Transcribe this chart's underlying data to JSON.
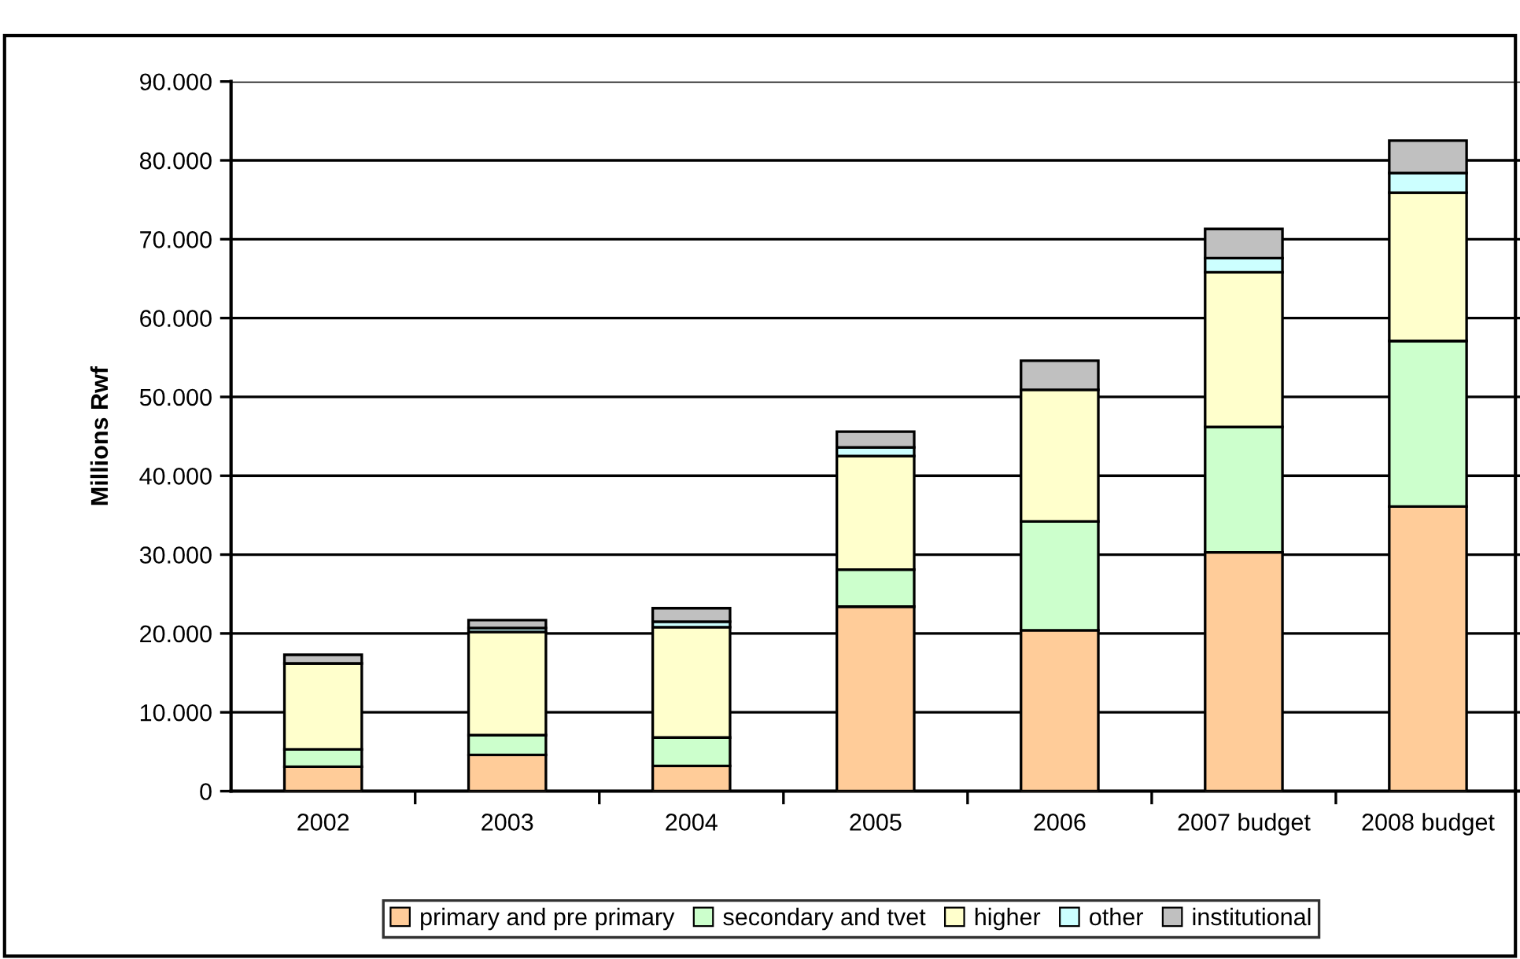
{
  "chart_data": {
    "type": "bar",
    "stacked": true,
    "ylabel": "Millions Rwf",
    "categories": [
      "2002",
      "2003",
      "2004",
      "2005",
      "2006",
      "2007 budget",
      "2008 budget"
    ],
    "series": [
      {
        "name": "primary and pre primary",
        "color": "#ffcc99",
        "values": [
          3100,
          4600,
          3200,
          23400,
          20400,
          30300,
          36100
        ]
      },
      {
        "name": "secondary and tvet",
        "color": "#ccffcc",
        "values": [
          2200,
          2500,
          3600,
          4700,
          13800,
          15900,
          21000
        ]
      },
      {
        "name": "higher",
        "color": "#ffffcc",
        "values": [
          10900,
          13100,
          14000,
          14400,
          16700,
          19600,
          18800
        ]
      },
      {
        "name": "other",
        "color": "#ccffff",
        "values": [
          0,
          500,
          700,
          1100,
          0,
          1800,
          2500
        ]
      },
      {
        "name": "institutional",
        "color": "#c0c0c0",
        "values": [
          1100,
          1000,
          1700,
          2000,
          3700,
          3700,
          4100
        ]
      }
    ],
    "ylim": [
      0,
      90000
    ],
    "yticks": [
      0,
      {
        "value": 10000,
        "label": "10.000"
      },
      {
        "value": 20000,
        "label": "20.000"
      },
      {
        "value": 30000,
        "label": "30.000"
      },
      {
        "value": 40000,
        "label": "40.000"
      },
      {
        "value": 50000,
        "label": "50.000"
      },
      {
        "value": 60000,
        "label": "60.000"
      },
      {
        "value": 70000,
        "label": "70.000"
      },
      {
        "value": 80000,
        "label": "80.000"
      },
      {
        "value": 90000,
        "label": "90.000"
      }
    ],
    "grid": "y",
    "legend": "bottom"
  }
}
